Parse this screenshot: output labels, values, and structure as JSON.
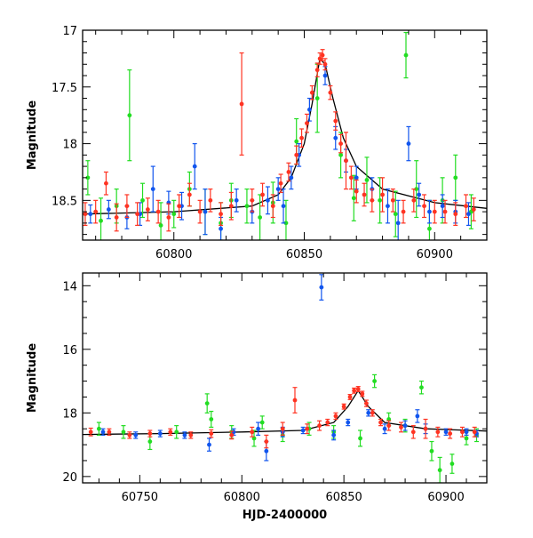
{
  "chart_data": [
    {
      "type": "scatter",
      "title": "",
      "xlabel": "",
      "ylabel": "Magnitude",
      "xlim": [
        60765,
        60920
      ],
      "ylim": [
        18.85,
        17.0
      ],
      "y_inverted": true,
      "x_ticks": [
        "60800",
        "60850",
        "60900"
      ],
      "y_ticks": [
        "17",
        "17.5",
        "18",
        "18.5"
      ],
      "colors": {
        "green": "#22dd22",
        "blue": "#1155ee",
        "red": "#ff3322",
        "model": "#000000"
      },
      "model_curve": {
        "x": [
          60765,
          60800,
          60830,
          60840,
          60845,
          60850,
          60853,
          60856,
          60858,
          60861,
          60865,
          60870,
          60880,
          60900,
          60920
        ],
        "y": [
          18.62,
          18.6,
          18.55,
          18.45,
          18.3,
          18.0,
          17.65,
          17.25,
          17.3,
          17.6,
          17.95,
          18.2,
          18.4,
          18.52,
          18.57
        ]
      },
      "series": [
        {
          "color": "green",
          "x": [
            60767,
            60772,
            60778,
            60783,
            60788,
            60795,
            60800,
            60806,
            60812,
            60818,
            60822,
            60828,
            60833,
            60838,
            60843,
            60847,
            60855,
            60864,
            60869,
            60874,
            60879,
            60885,
            60889,
            60893,
            60898,
            60903,
            60908,
            60914
          ],
          "y": [
            18.3,
            18.68,
            18.55,
            17.75,
            18.5,
            18.72,
            18.62,
            18.4,
            18.6,
            18.7,
            18.5,
            18.55,
            18.65,
            18.52,
            18.7,
            17.98,
            17.6,
            18.1,
            18.48,
            18.32,
            18.5,
            18.62,
            17.22,
            18.4,
            18.75,
            18.5,
            18.3,
            18.6
          ],
          "err": [
            0.15,
            0.2,
            0.15,
            0.4,
            0.15,
            0.2,
            0.12,
            0.15,
            0.2,
            0.18,
            0.15,
            0.15,
            0.2,
            0.18,
            0.2,
            0.2,
            0.3,
            0.2,
            0.2,
            0.2,
            0.2,
            0.2,
            0.2,
            0.25,
            0.25,
            0.2,
            0.2,
            0.15
          ]
        },
        {
          "color": "blue",
          "x": [
            60768,
            60775,
            60782,
            60787,
            60792,
            60798,
            60803,
            60808,
            60812,
            60818,
            60824,
            60830,
            60836,
            60840,
            60842,
            60845,
            60848,
            60852,
            60858,
            60862,
            60866,
            60870,
            60876,
            60882,
            60886,
            60890,
            60894,
            60898,
            60903,
            60908,
            60913
          ],
          "y": [
            18.62,
            18.58,
            18.65,
            18.62,
            18.4,
            18.52,
            18.55,
            18.2,
            18.6,
            18.75,
            18.5,
            18.6,
            18.5,
            18.4,
            18.55,
            18.3,
            18.1,
            17.7,
            17.4,
            17.95,
            18.15,
            18.3,
            18.4,
            18.55,
            18.7,
            18.0,
            18.45,
            18.6,
            18.55,
            18.6,
            18.62
          ],
          "err": [
            0.08,
            0.08,
            0.1,
            0.1,
            0.2,
            0.1,
            0.12,
            0.2,
            0.2,
            0.1,
            0.1,
            0.1,
            0.12,
            0.1,
            0.15,
            0.1,
            0.1,
            0.1,
            0.08,
            0.1,
            0.1,
            0.1,
            0.1,
            0.15,
            0.2,
            0.15,
            0.1,
            0.1,
            0.1,
            0.1,
            0.1
          ]
        },
        {
          "color": "red",
          "x": [
            60766,
            60770,
            60774,
            60778,
            60782,
            60786,
            60790,
            60794,
            60798,
            60802,
            60806,
            60810,
            60814,
            60818,
            60822,
            60826,
            60830,
            60834,
            60838,
            60841,
            60844,
            60847,
            60849,
            60851,
            60853,
            60855,
            60856,
            60857,
            60858,
            60860,
            60862,
            60864,
            60866,
            60868,
            60870,
            60873,
            60876,
            60880,
            60884,
            60888,
            60892,
            60896,
            60900,
            60904,
            60908,
            60912,
            60915
          ],
          "y": [
            18.62,
            18.6,
            18.35,
            18.65,
            18.55,
            18.62,
            18.58,
            18.6,
            18.65,
            18.55,
            18.45,
            18.6,
            18.5,
            18.62,
            18.55,
            17.65,
            18.5,
            18.45,
            18.55,
            18.35,
            18.25,
            18.1,
            17.95,
            17.82,
            17.55,
            17.35,
            17.25,
            17.22,
            17.3,
            17.55,
            17.8,
            18.0,
            18.15,
            18.3,
            18.42,
            18.45,
            18.5,
            18.45,
            18.5,
            18.6,
            18.5,
            18.55,
            18.6,
            18.6,
            18.62,
            18.55,
            18.58
          ],
          "err": [
            0.1,
            0.1,
            0.1,
            0.12,
            0.1,
            0.1,
            0.1,
            0.1,
            0.12,
            0.1,
            0.1,
            0.1,
            0.1,
            0.1,
            0.12,
            0.45,
            0.1,
            0.1,
            0.1,
            0.08,
            0.08,
            0.08,
            0.08,
            0.08,
            0.06,
            0.06,
            0.05,
            0.05,
            0.05,
            0.06,
            0.08,
            0.08,
            0.25,
            0.1,
            0.1,
            0.1,
            0.1,
            0.15,
            0.1,
            0.1,
            0.1,
            0.1,
            0.1,
            0.1,
            0.1,
            0.1,
            0.1
          ]
        }
      ]
    },
    {
      "type": "scatter",
      "title": "",
      "xlabel": "HJD-2400000",
      "ylabel": "Magnitude",
      "xlim": [
        60722,
        60920
      ],
      "ylim": [
        20.2,
        13.6
      ],
      "y_inverted": true,
      "x_ticks": [
        "60750",
        "60800",
        "60850",
        "60900"
      ],
      "y_ticks": [
        "14",
        "16",
        "18",
        "20"
      ],
      "colors": {
        "green": "#22dd22",
        "blue": "#1155ee",
        "red": "#ff3322",
        "model": "#000000"
      },
      "model_curve": {
        "x": [
          60722,
          60760,
          60800,
          60830,
          60845,
          60852,
          60857,
          60862,
          60870,
          60890,
          60920
        ],
        "y": [
          18.68,
          18.65,
          18.6,
          18.55,
          18.3,
          17.8,
          17.3,
          17.8,
          18.3,
          18.5,
          18.57
        ]
      },
      "series": [
        {
          "color": "green",
          "x": [
            60730,
            60742,
            60755,
            60768,
            60783,
            60785,
            60795,
            60806,
            60810,
            60820,
            60833,
            60845,
            60858,
            60865,
            60872,
            60880,
            60888,
            60893,
            60897,
            60903,
            60910,
            60915
          ],
          "y": [
            18.5,
            18.6,
            18.9,
            18.6,
            17.7,
            18.2,
            18.6,
            18.8,
            18.3,
            18.7,
            18.5,
            18.6,
            18.8,
            17.0,
            18.2,
            18.4,
            17.2,
            19.2,
            19.8,
            19.6,
            18.8,
            18.7
          ],
          "err": [
            0.2,
            0.2,
            0.25,
            0.2,
            0.3,
            0.25,
            0.2,
            0.25,
            0.2,
            0.2,
            0.2,
            0.2,
            0.25,
            0.2,
            0.2,
            0.2,
            0.2,
            0.3,
            0.4,
            0.3,
            0.2,
            0.2
          ]
        },
        {
          "color": "blue",
          "x": [
            60732,
            60748,
            60760,
            60772,
            60784,
            60796,
            60808,
            60812,
            60820,
            60830,
            60839,
            60845,
            60852,
            60862,
            60870,
            60880,
            60886,
            60890,
            60900,
            60910,
            60915
          ],
          "y": [
            18.6,
            18.7,
            18.65,
            18.7,
            19.0,
            18.6,
            18.5,
            19.2,
            18.6,
            18.55,
            14.05,
            18.7,
            18.3,
            18.0,
            18.5,
            18.4,
            18.1,
            18.5,
            18.6,
            18.6,
            18.65
          ],
          "err": [
            0.1,
            0.1,
            0.1,
            0.1,
            0.2,
            0.1,
            0.2,
            0.3,
            0.15,
            0.1,
            0.4,
            0.15,
            0.1,
            0.1,
            0.15,
            0.15,
            0.2,
            0.15,
            0.1,
            0.1,
            0.1
          ]
        },
        {
          "color": "red",
          "x": [
            60726,
            60735,
            60745,
            60755,
            60765,
            60775,
            60785,
            60795,
            60805,
            60812,
            60820,
            60826,
            60832,
            60838,
            60842,
            60846,
            60850,
            60853,
            60855,
            60857,
            60859,
            60861,
            60864,
            60868,
            60872,
            60878,
            60884,
            60890,
            60896,
            60902,
            60908,
            60914
          ],
          "y": [
            18.6,
            18.6,
            18.7,
            18.65,
            18.6,
            18.7,
            18.65,
            18.7,
            18.6,
            18.9,
            18.5,
            17.6,
            18.5,
            18.4,
            18.3,
            18.1,
            17.8,
            17.5,
            17.3,
            17.25,
            17.4,
            17.7,
            18.0,
            18.3,
            18.4,
            18.45,
            18.6,
            18.5,
            18.6,
            18.65,
            18.6,
            18.6
          ],
          "err": [
            0.12,
            0.1,
            0.1,
            0.1,
            0.1,
            0.1,
            0.12,
            0.12,
            0.15,
            0.2,
            0.2,
            0.4,
            0.15,
            0.15,
            0.1,
            0.1,
            0.08,
            0.08,
            0.08,
            0.08,
            0.08,
            0.1,
            0.1,
            0.1,
            0.15,
            0.15,
            0.2,
            0.3,
            0.15,
            0.15,
            0.15,
            0.15
          ]
        }
      ]
    }
  ]
}
